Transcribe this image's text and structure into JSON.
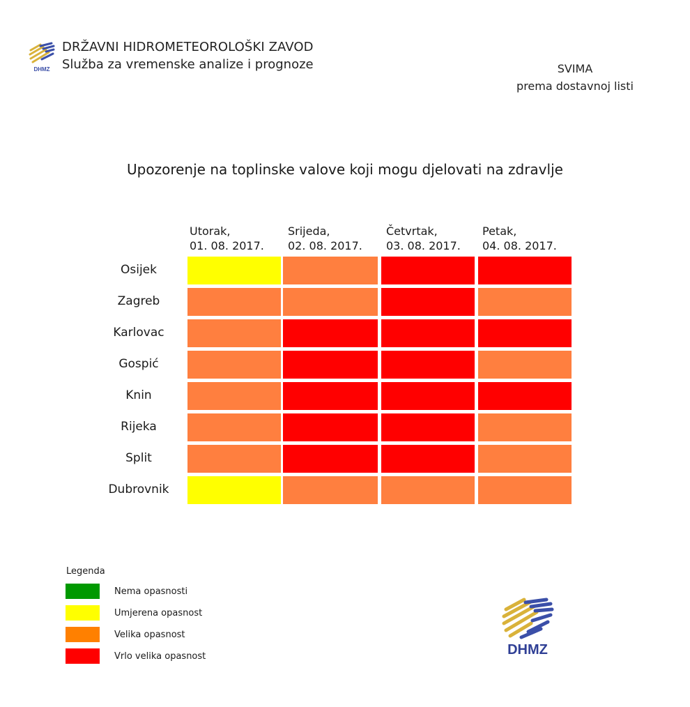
{
  "header": {
    "organization": "DRŽAVNI HIDROMETEOROLOŠKI ZAVOD",
    "department": "Služba za vremenske analize i prognoze",
    "logo_text": "DHMZ",
    "recipient_line1": "SVIMA",
    "recipient_line2": "prema dostavnoj listi"
  },
  "title": "Upozorenje na toplinske valove koji mogu djelovati na zdravlje",
  "colors": {
    "none": "#009900",
    "moderate": "#ffff00",
    "high": "#ff7f3f",
    "very_high": "#ff0000",
    "legend_high": "#ff8000"
  },
  "table": {
    "columns": [
      {
        "day": "Utorak,",
        "date": "01. 08. 2017."
      },
      {
        "day": "Srijeda,",
        "date": "02. 08. 2017."
      },
      {
        "day": "Četvrtak,",
        "date": "03. 08. 2017."
      },
      {
        "day": "Petak,",
        "date": "04. 08. 2017."
      }
    ],
    "rows": [
      {
        "city": "Osijek",
        "levels": [
          "moderate",
          "high",
          "very_high",
          "very_high"
        ]
      },
      {
        "city": "Zagreb",
        "levels": [
          "high",
          "high",
          "very_high",
          "high"
        ]
      },
      {
        "city": "Karlovac",
        "levels": [
          "high",
          "very_high",
          "very_high",
          "very_high"
        ]
      },
      {
        "city": "Gospić",
        "levels": [
          "high",
          "very_high",
          "very_high",
          "high"
        ]
      },
      {
        "city": "Knin",
        "levels": [
          "high",
          "very_high",
          "very_high",
          "very_high"
        ]
      },
      {
        "city": "Rijeka",
        "levels": [
          "high",
          "very_high",
          "very_high",
          "high"
        ]
      },
      {
        "city": "Split",
        "levels": [
          "high",
          "very_high",
          "very_high",
          "high"
        ]
      },
      {
        "city": "Dubrovnik",
        "levels": [
          "moderate",
          "high",
          "high",
          "high"
        ]
      }
    ]
  },
  "legend": {
    "title": "Legenda",
    "items": [
      {
        "label": "Nema opasnosti",
        "level": "none"
      },
      {
        "label": "Umjerena opasnost",
        "level": "moderate"
      },
      {
        "label": "Velika opasnost",
        "level": "legend_high"
      },
      {
        "label": "Vrlo velika opasnost",
        "level": "very_high"
      }
    ]
  },
  "footer_logo_text": "DHMZ"
}
